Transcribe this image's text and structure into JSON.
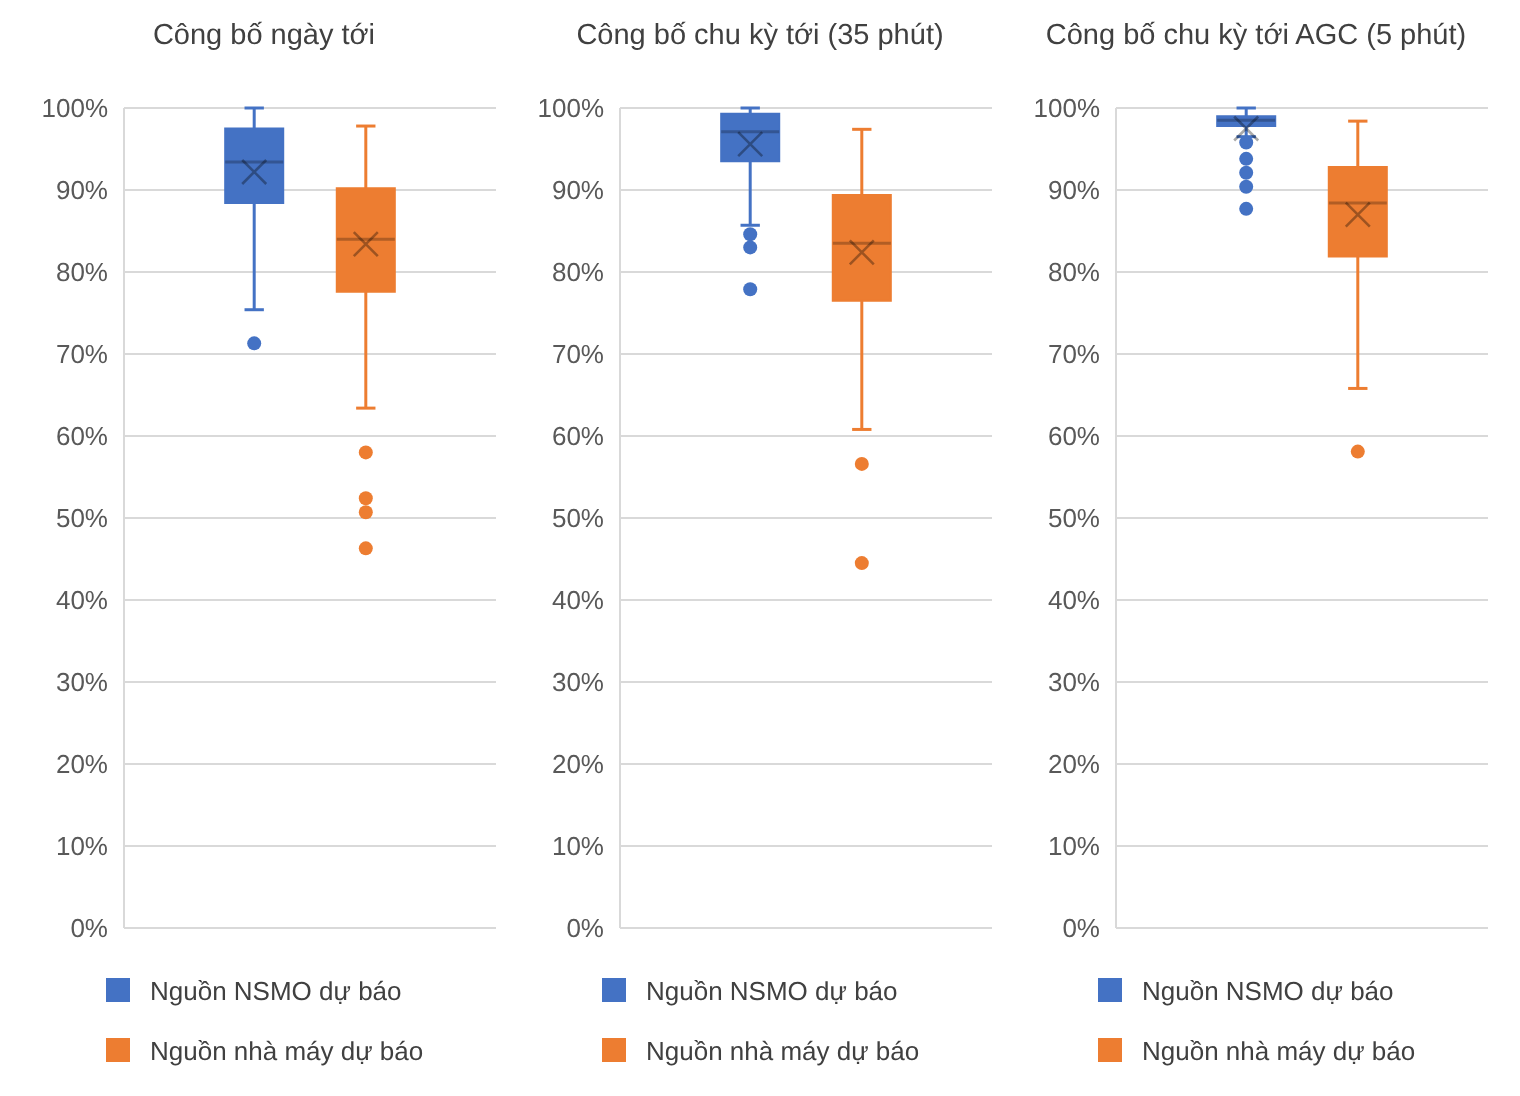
{
  "chart_data": [
    {
      "type": "box",
      "title": "Công bố ngày tới",
      "categories": [
        null
      ],
      "ylim": [
        0,
        100
      ],
      "yticks": [
        {
          "value": 0,
          "label": "0%"
        },
        {
          "value": 10,
          "label": "10%"
        },
        {
          "value": 20,
          "label": "20%"
        },
        {
          "value": 30,
          "label": "30%"
        },
        {
          "value": 40,
          "label": "40%"
        },
        {
          "value": 50,
          "label": "50%"
        },
        {
          "value": 60,
          "label": "60%"
        },
        {
          "value": 70,
          "label": "70%"
        },
        {
          "value": 80,
          "label": "80%"
        },
        {
          "value": 90,
          "label": "90%"
        },
        {
          "value": 100,
          "label": "100%"
        }
      ],
      "grid": "y",
      "legend": "bottom",
      "series": [
        {
          "name": "Nguồn NSMO dự báo",
          "color": "#4472c4",
          "boxes": [
            {
              "low": 75.4,
              "q1": 88.4,
              "median": 93.4,
              "q3": 97.5,
              "high": 100,
              "mean": 92.2,
              "outliers": [
                71.3
              ]
            }
          ]
        },
        {
          "name": "Nguồn nhà máy dự báo",
          "color": "#ed7d31",
          "boxes": [
            {
              "low": 63.4,
              "q1": 77.6,
              "median": 84,
              "q3": 90.2,
              "high": 97.8,
              "mean": 83.4,
              "outliers": [
                58,
                52.4,
                50.7,
                46.3
              ]
            }
          ]
        }
      ]
    },
    {
      "type": "box",
      "title": "Công bố chu kỳ tới (35 phút)",
      "categories": [
        null
      ],
      "ylim": [
        0,
        100
      ],
      "yticks": [
        {
          "value": 0,
          "label": "0%"
        },
        {
          "value": 10,
          "label": "10%"
        },
        {
          "value": 20,
          "label": "20%"
        },
        {
          "value": 30,
          "label": "30%"
        },
        {
          "value": 40,
          "label": "40%"
        },
        {
          "value": 50,
          "label": "50%"
        },
        {
          "value": 60,
          "label": "60%"
        },
        {
          "value": 70,
          "label": "70%"
        },
        {
          "value": 80,
          "label": "80%"
        },
        {
          "value": 90,
          "label": "90%"
        },
        {
          "value": 100,
          "label": "100%"
        }
      ],
      "grid": "y",
      "legend": "bottom",
      "series": [
        {
          "name": "Nguồn NSMO dự báo",
          "color": "#4472c4",
          "boxes": [
            {
              "low": 85.7,
              "q1": 93.5,
              "median": 97.1,
              "q3": 99.3,
              "high": 100,
              "mean": 95.6,
              "outliers": [
                84.6,
                83,
                77.9
              ]
            }
          ]
        },
        {
          "name": "Nguồn nhà máy dự báo",
          "color": "#ed7d31",
          "boxes": [
            {
              "low": 60.8,
              "q1": 76.5,
              "median": 83.5,
              "q3": 89.4,
              "high": 97.4,
              "mean": 82.4,
              "outliers": [
                56.6,
                44.5
              ]
            }
          ]
        }
      ]
    },
    {
      "type": "box",
      "title": "Công bố chu kỳ tới AGC (5 phút)",
      "categories": [
        null
      ],
      "ylim": [
        0,
        100
      ],
      "yticks": [
        {
          "value": 0,
          "label": "0%"
        },
        {
          "value": 10,
          "label": "10%"
        },
        {
          "value": 20,
          "label": "20%"
        },
        {
          "value": 30,
          "label": "30%"
        },
        {
          "value": 40,
          "label": "40%"
        },
        {
          "value": 50,
          "label": "50%"
        },
        {
          "value": 60,
          "label": "60%"
        },
        {
          "value": 70,
          "label": "70%"
        },
        {
          "value": 80,
          "label": "80%"
        },
        {
          "value": 90,
          "label": "90%"
        },
        {
          "value": 100,
          "label": "100%"
        }
      ],
      "grid": "y",
      "legend": "bottom",
      "series": [
        {
          "name": "Nguồn NSMO dự báo",
          "color": "#4472c4",
          "boxes": [
            {
              "low": 96.5,
              "q1": 97.8,
              "median": 98.5,
              "q3": 99,
              "high": 100,
              "mean": 97.5,
              "outliers": [
                95.8,
                93.8,
                92.1,
                90.4,
                87.7
              ]
            }
          ]
        },
        {
          "name": "Nguồn nhà máy dự báo",
          "color": "#ed7d31",
          "boxes": [
            {
              "low": 65.8,
              "q1": 81.9,
              "median": 88.4,
              "q3": 92.8,
              "high": 98.4,
              "mean": 87,
              "outliers": [
                58.1
              ]
            }
          ]
        }
      ]
    }
  ]
}
